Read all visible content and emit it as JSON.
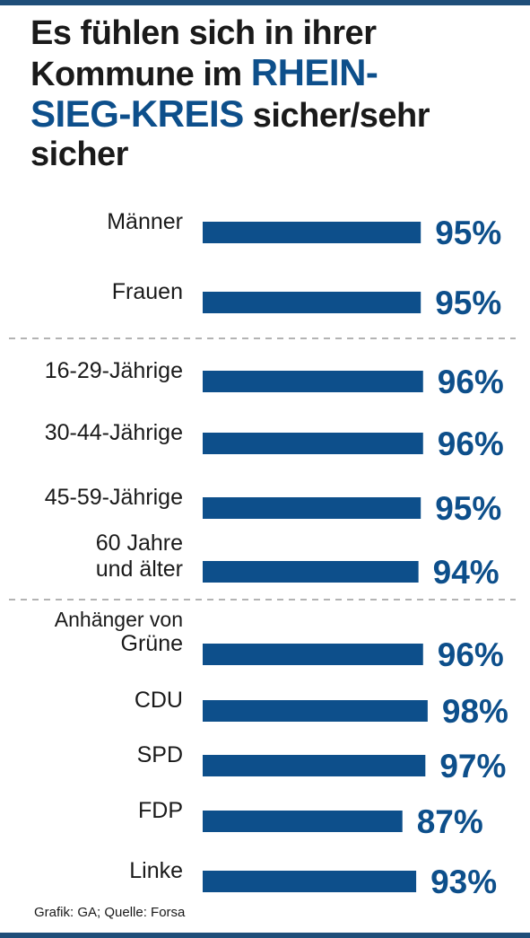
{
  "colors": {
    "accent": "#0d4f8b",
    "rule": "#1f4e79",
    "divider": "#b3b3b3"
  },
  "title": {
    "part1": "Es fühlen sich in ihrer Kommune im ",
    "highlight_line1": "RHEIN-",
    "highlight_line2": "SIEG-KREIS",
    "part2": " sicher/sehr sicher"
  },
  "source": "Grafik: GA; Quelle: Forsa",
  "chart_data": {
    "type": "bar",
    "orientation": "horizontal",
    "title": "Es fühlen sich in ihrer Kommune im RHEIN-SIEG-KREIS sicher/sehr sicher",
    "xlabel": "",
    "ylabel": "",
    "unit": "%",
    "groups": [
      {
        "heading": "",
        "categories": [
          [
            "Männer"
          ],
          [
            "Frauen"
          ]
        ],
        "values": [
          95,
          95
        ]
      },
      {
        "heading": "",
        "categories": [
          [
            "16-29-Jährige"
          ],
          [
            "30-44-Jährige"
          ],
          [
            "45-59-Jährige"
          ],
          [
            "60 Jahre",
            "und älter"
          ]
        ],
        "values": [
          96,
          96,
          95,
          94
        ]
      },
      {
        "heading": "Anhänger von",
        "categories": [
          [
            "Grüne"
          ],
          [
            "CDU"
          ],
          [
            "SPD"
          ],
          [
            "FDP"
          ],
          [
            "Linke"
          ]
        ],
        "values": [
          96,
          98,
          97,
          87,
          93
        ]
      }
    ]
  }
}
